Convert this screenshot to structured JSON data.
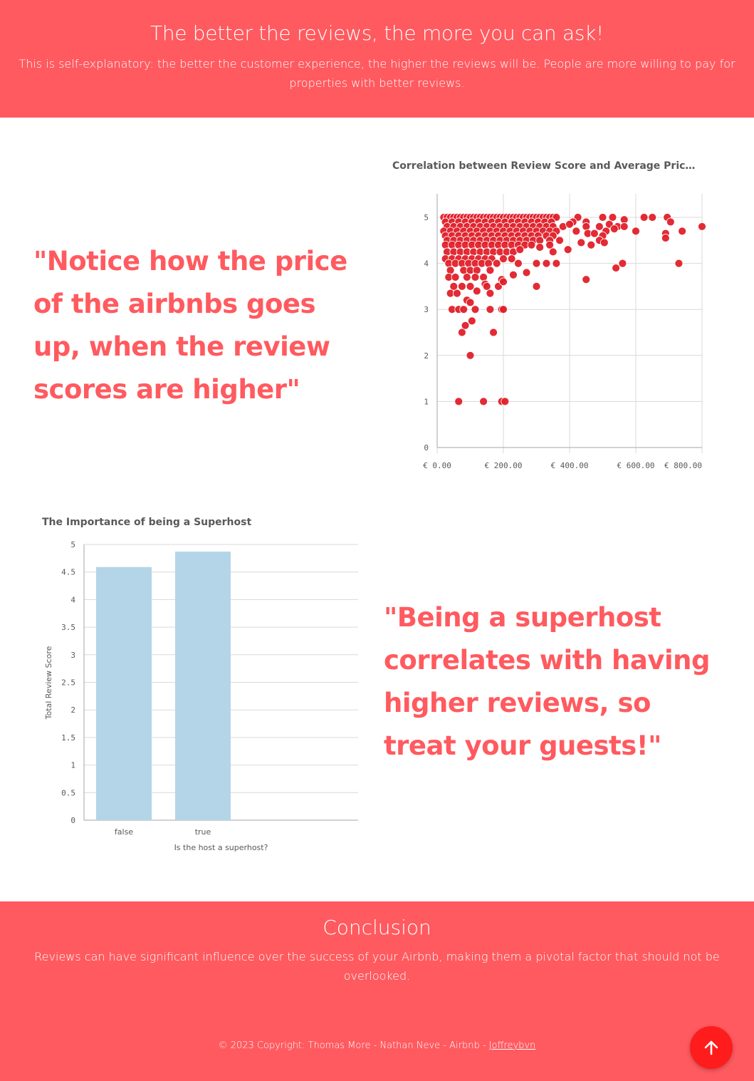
{
  "header": {
    "title": "The better the reviews, the more you can ask!",
    "subtitle": "This is self-explanatory: the better the customer experience, the higher the reviews will be. People are more willing to pay for properties with better reviews."
  },
  "quotes": {
    "price": "\"Notice how the price of the airbnbs goes up, when the review scores are higher\"",
    "superhost": "\"Being a superhost correlates with having higher reviews, so treat your guests!\""
  },
  "conclusion": {
    "title": "Conclusion",
    "body": "Reviews can have significant influence over the success of your Airbnb, making them a pivotal factor that should not be overlooked."
  },
  "footer": {
    "text": "© 2023 Copyright: Thomas More - Nathan Neve - Airbnb - ",
    "link": "Joffreybvn",
    "scroll_top_icon": "arrow-up-icon"
  },
  "colors": {
    "brand": "#ff5a5f",
    "scatter_point": "#e0202a",
    "bar": "#b4d5e8",
    "scroll_button": "#ff1c1c"
  },
  "chart_data": [
    {
      "type": "scatter",
      "title": "Correlation between Review Score and Average Price of t...",
      "xlabel": "",
      "ylabel": "",
      "xlim": [
        0,
        800
      ],
      "ylim": [
        0,
        5
      ],
      "x_ticks": [
        "€ 0.00",
        "€ 200.00",
        "€ 400.00",
        "€ 600.00",
        "€ 800.00"
      ],
      "y_ticks": [
        "0",
        "1",
        "2",
        "3",
        "4",
        "5"
      ],
      "grid": true,
      "points": [
        [
          20,
          5
        ],
        [
          30,
          5
        ],
        [
          40,
          5
        ],
        [
          50,
          5
        ],
        [
          60,
          5
        ],
        [
          70,
          5
        ],
        [
          80,
          5
        ],
        [
          90,
          5
        ],
        [
          100,
          5
        ],
        [
          110,
          5
        ],
        [
          120,
          5
        ],
        [
          130,
          5
        ],
        [
          140,
          5
        ],
        [
          150,
          5
        ],
        [
          160,
          5
        ],
        [
          170,
          5
        ],
        [
          180,
          5
        ],
        [
          190,
          5
        ],
        [
          200,
          5
        ],
        [
          210,
          5
        ],
        [
          220,
          5
        ],
        [
          230,
          5
        ],
        [
          240,
          5
        ],
        [
          250,
          5
        ],
        [
          260,
          5
        ],
        [
          270,
          5
        ],
        [
          280,
          5
        ],
        [
          290,
          5
        ],
        [
          300,
          5
        ],
        [
          310,
          5
        ],
        [
          320,
          5
        ],
        [
          330,
          5
        ],
        [
          340,
          5
        ],
        [
          350,
          5
        ],
        [
          360,
          5
        ],
        [
          425,
          5
        ],
        [
          500,
          5
        ],
        [
          530,
          5
        ],
        [
          625,
          5
        ],
        [
          650,
          5
        ],
        [
          695,
          5
        ],
        [
          25,
          4.9
        ],
        [
          45,
          4.9
        ],
        [
          65,
          4.9
        ],
        [
          85,
          4.9
        ],
        [
          105,
          4.9
        ],
        [
          125,
          4.9
        ],
        [
          145,
          4.9
        ],
        [
          165,
          4.9
        ],
        [
          185,
          4.9
        ],
        [
          205,
          4.9
        ],
        [
          225,
          4.9
        ],
        [
          245,
          4.9
        ],
        [
          265,
          4.9
        ],
        [
          285,
          4.9
        ],
        [
          305,
          4.9
        ],
        [
          325,
          4.9
        ],
        [
          345,
          4.9
        ],
        [
          410,
          4.9
        ],
        [
          450,
          4.9
        ],
        [
          565,
          4.95
        ],
        [
          705,
          4.9
        ],
        [
          30,
          4.8
        ],
        [
          50,
          4.8
        ],
        [
          70,
          4.8
        ],
        [
          90,
          4.8
        ],
        [
          110,
          4.8
        ],
        [
          130,
          4.8
        ],
        [
          150,
          4.8
        ],
        [
          170,
          4.8
        ],
        [
          190,
          4.8
        ],
        [
          210,
          4.8
        ],
        [
          230,
          4.8
        ],
        [
          250,
          4.8
        ],
        [
          270,
          4.8
        ],
        [
          290,
          4.8
        ],
        [
          310,
          4.8
        ],
        [
          330,
          4.8
        ],
        [
          350,
          4.8
        ],
        [
          380,
          4.8
        ],
        [
          400,
          4.85
        ],
        [
          450,
          4.8
        ],
        [
          490,
          4.8
        ],
        [
          520,
          4.85
        ],
        [
          545,
          4.8
        ],
        [
          565,
          4.8
        ],
        [
          800,
          4.8
        ],
        [
          20,
          4.7
        ],
        [
          40,
          4.7
        ],
        [
          60,
          4.7
        ],
        [
          80,
          4.7
        ],
        [
          100,
          4.7
        ],
        [
          120,
          4.7
        ],
        [
          140,
          4.7
        ],
        [
          160,
          4.7
        ],
        [
          180,
          4.7
        ],
        [
          200,
          4.7
        ],
        [
          220,
          4.7
        ],
        [
          240,
          4.7
        ],
        [
          260,
          4.7
        ],
        [
          280,
          4.7
        ],
        [
          300,
          4.7
        ],
        [
          320,
          4.7
        ],
        [
          340,
          4.7
        ],
        [
          360,
          4.7
        ],
        [
          420,
          4.7
        ],
        [
          455,
          4.65
        ],
        [
          475,
          4.65
        ],
        [
          510,
          4.7
        ],
        [
          535,
          4.75
        ],
        [
          600,
          4.7
        ],
        [
          690,
          4.65
        ],
        [
          740,
          4.7
        ],
        [
          25,
          4.6
        ],
        [
          45,
          4.6
        ],
        [
          65,
          4.6
        ],
        [
          85,
          4.6
        ],
        [
          105,
          4.6
        ],
        [
          125,
          4.6
        ],
        [
          145,
          4.6
        ],
        [
          165,
          4.6
        ],
        [
          185,
          4.6
        ],
        [
          205,
          4.6
        ],
        [
          225,
          4.6
        ],
        [
          245,
          4.6
        ],
        [
          265,
          4.6
        ],
        [
          285,
          4.6
        ],
        [
          305,
          4.6
        ],
        [
          330,
          4.6
        ],
        [
          350,
          4.6
        ],
        [
          500,
          4.6
        ],
        [
          690,
          4.55
        ],
        [
          30,
          4.5
        ],
        [
          50,
          4.5
        ],
        [
          70,
          4.5
        ],
        [
          90,
          4.5
        ],
        [
          110,
          4.5
        ],
        [
          130,
          4.5
        ],
        [
          150,
          4.5
        ],
        [
          170,
          4.5
        ],
        [
          190,
          4.5
        ],
        [
          210,
          4.5
        ],
        [
          230,
          4.5
        ],
        [
          250,
          4.5
        ],
        [
          270,
          4.5
        ],
        [
          290,
          4.5
        ],
        [
          310,
          4.5
        ],
        [
          340,
          4.5
        ],
        [
          370,
          4.5
        ],
        [
          435,
          4.45
        ],
        [
          490,
          4.5
        ],
        [
          505,
          4.45
        ],
        [
          465,
          4.4
        ],
        [
          25,
          4.4
        ],
        [
          45,
          4.4
        ],
        [
          65,
          4.4
        ],
        [
          85,
          4.4
        ],
        [
          105,
          4.4
        ],
        [
          125,
          4.4
        ],
        [
          145,
          4.4
        ],
        [
          165,
          4.4
        ],
        [
          185,
          4.4
        ],
        [
          205,
          4.4
        ],
        [
          225,
          4.4
        ],
        [
          245,
          4.4
        ],
        [
          265,
          4.4
        ],
        [
          285,
          4.4
        ],
        [
          310,
          4.35
        ],
        [
          340,
          4.4
        ],
        [
          395,
          4.3
        ],
        [
          30,
          4.25
        ],
        [
          50,
          4.25
        ],
        [
          70,
          4.25
        ],
        [
          90,
          4.25
        ],
        [
          110,
          4.25
        ],
        [
          130,
          4.25
        ],
        [
          150,
          4.25
        ],
        [
          170,
          4.25
        ],
        [
          190,
          4.25
        ],
        [
          210,
          4.25
        ],
        [
          230,
          4.25
        ],
        [
          250,
          4.3
        ],
        [
          350,
          4.25
        ],
        [
          25,
          4.1
        ],
        [
          45,
          4.1
        ],
        [
          65,
          4.1
        ],
        [
          85,
          4.1
        ],
        [
          105,
          4.1
        ],
        [
          125,
          4.1
        ],
        [
          145,
          4.1
        ],
        [
          165,
          4.1
        ],
        [
          200,
          4.1
        ],
        [
          225,
          4.1
        ],
        [
          35,
          4
        ],
        [
          55,
          4
        ],
        [
          75,
          4
        ],
        [
          95,
          4
        ],
        [
          115,
          4
        ],
        [
          135,
          4
        ],
        [
          155,
          4
        ],
        [
          180,
          4
        ],
        [
          245,
          4
        ],
        [
          300,
          4
        ],
        [
          330,
          4
        ],
        [
          360,
          4
        ],
        [
          560,
          4
        ],
        [
          730,
          4
        ],
        [
          40,
          3.85
        ],
        [
          80,
          3.85
        ],
        [
          100,
          3.85
        ],
        [
          120,
          3.85
        ],
        [
          160,
          3.85
        ],
        [
          270,
          3.8
        ],
        [
          540,
          3.9
        ],
        [
          35,
          3.7
        ],
        [
          55,
          3.7
        ],
        [
          90,
          3.7
        ],
        [
          115,
          3.7
        ],
        [
          140,
          3.7
        ],
        [
          195,
          3.65
        ],
        [
          230,
          3.75
        ],
        [
          450,
          3.65
        ],
        [
          50,
          3.5
        ],
        [
          75,
          3.5
        ],
        [
          100,
          3.5
        ],
        [
          145,
          3.55
        ],
        [
          150,
          3.5
        ],
        [
          185,
          3.5
        ],
        [
          200,
          3.6
        ],
        [
          300,
          3.5
        ],
        [
          40,
          3.35
        ],
        [
          60,
          3.35
        ],
        [
          120,
          3.4
        ],
        [
          160,
          3.35
        ],
        [
          90,
          3.2
        ],
        [
          100,
          3.15
        ],
        [
          45,
          3
        ],
        [
          65,
          3
        ],
        [
          80,
          3
        ],
        [
          115,
          3
        ],
        [
          160,
          3
        ],
        [
          195,
          3
        ],
        [
          200,
          3
        ],
        [
          85,
          2.65
        ],
        [
          105,
          2.75
        ],
        [
          75,
          2.5
        ],
        [
          170,
          2.5
        ],
        [
          100,
          2
        ],
        [
          65,
          1
        ],
        [
          140,
          1
        ],
        [
          195,
          1
        ],
        [
          205,
          1
        ]
      ]
    },
    {
      "type": "bar",
      "title": "The Importance of being a Superhost",
      "xlabel": "Is the host a superhost?",
      "ylabel": "Total Review Score",
      "categories": [
        "false",
        "true"
      ],
      "values": [
        4.59,
        4.87
      ],
      "ylim": [
        0,
        5
      ],
      "y_ticks": [
        "0",
        "0.5",
        "1",
        "1.5",
        "2",
        "2.5",
        "3",
        "3.5",
        "4",
        "4.5",
        "5"
      ],
      "grid": true
    }
  ]
}
